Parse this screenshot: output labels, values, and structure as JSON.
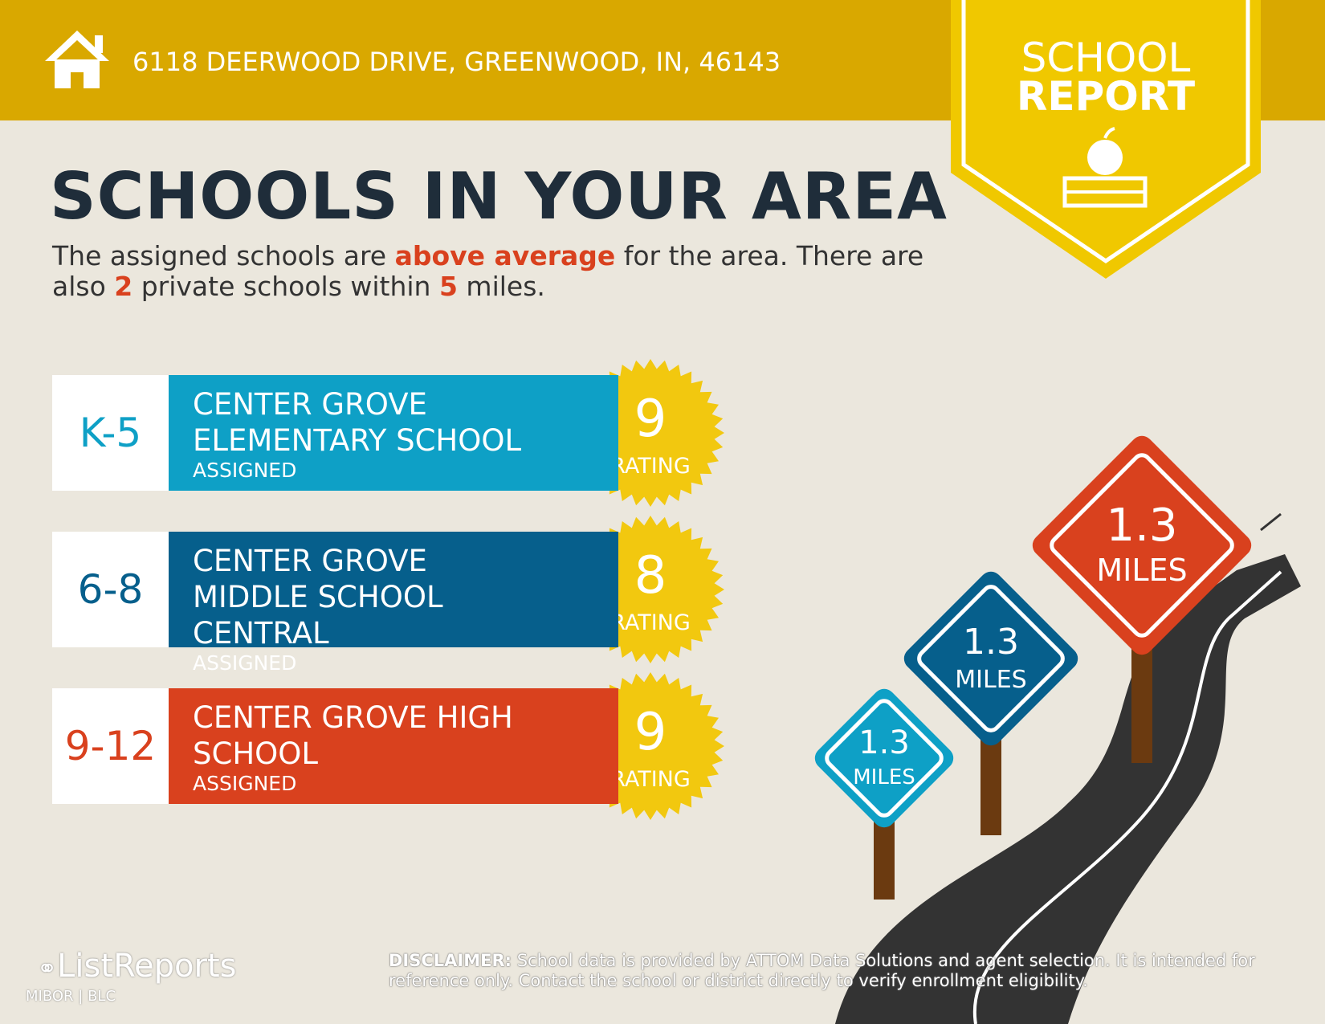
{
  "header": {
    "address": "6118 DEERWOOD DRIVE, GREENWOOD, IN, 46143"
  },
  "badge": {
    "line1": "SCHOOL",
    "line2": "REPORT"
  },
  "heading": "SCHOOLS IN YOUR AREA",
  "intro": {
    "part1": "The assigned schools are ",
    "highlight": "above average",
    "part2": " for the area. There are also ",
    "private_count": "2",
    "part3": " private schools within ",
    "radius": "5",
    "part4": " miles."
  },
  "schools": [
    {
      "grades": "K-5",
      "name": "CENTER GROVE ELEMENTARY SCHOOL",
      "status": "ASSIGNED",
      "rating": 9,
      "rating_label": "RATING",
      "distance": "1.3",
      "distance_unit": "MILES",
      "color": "#0ea0c6"
    },
    {
      "grades": "6-8",
      "name": "CENTER GROVE MIDDLE SCHOOL CENTRAL",
      "status": "ASSIGNED",
      "rating": 8,
      "rating_label": "RATING",
      "distance": "1.3",
      "distance_unit": "MILES",
      "color": "#065f8c"
    },
    {
      "grades": "9-12",
      "name": "CENTER GROVE HIGH SCHOOL",
      "status": "ASSIGNED",
      "rating": 9,
      "rating_label": "RATING",
      "distance": "1.3",
      "distance_unit": "MILES",
      "color": "#d9411e"
    }
  ],
  "disclaimer": {
    "label": "DISCLAIMER:",
    "text": " School data is provided by ATTOM Data Solutions and agent selection. It is intended for reference only. Contact the school or district directly to verify enrollment eligibility."
  },
  "logo": {
    "brand": "ListReports",
    "partner1": "MIBOR",
    "partner2": "BLC"
  }
}
